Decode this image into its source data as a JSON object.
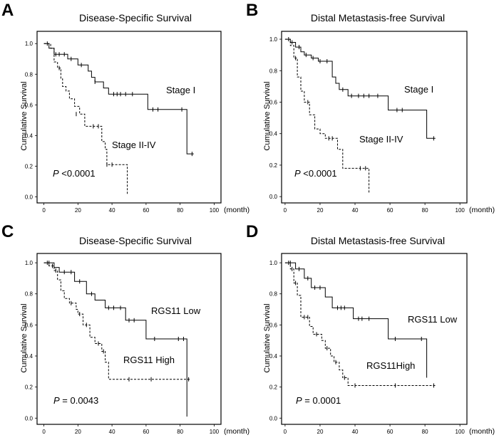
{
  "figure": {
    "panels": [
      "A",
      "B",
      "C",
      "D"
    ]
  },
  "chart_data": [
    {
      "panel": "A",
      "type": "line",
      "title": "Disease-Specific Survival",
      "xlabel": "(month)",
      "ylabel": "Cumulative Survival",
      "x_ticks": [
        "0",
        "20",
        "40",
        "60",
        "80",
        "100"
      ],
      "y_ticks": [
        "0.0",
        "0.2",
        "0.4",
        "0.6",
        "0.8",
        "1.0"
      ],
      "xlim": [
        -4,
        104
      ],
      "ylim": [
        -0.04,
        1.08
      ],
      "p_label": "P",
      "p_text": " <0.0001",
      "series": [
        {
          "name": "Stage I",
          "style": "solid",
          "steps": [
            [
              0,
              1.0
            ],
            [
              3,
              0.97
            ],
            [
              6,
              0.93
            ],
            [
              14,
              0.9
            ],
            [
              20,
              0.86
            ],
            [
              26,
              0.82
            ],
            [
              28,
              0.78
            ],
            [
              30,
              0.75
            ],
            [
              35,
              0.71
            ],
            [
              38,
              0.67
            ],
            [
              61,
              0.57
            ],
            [
              84,
              0.28
            ],
            [
              88,
              0.28
            ]
          ],
          "censors": [
            [
              2,
              1.0
            ],
            [
              7,
              0.93
            ],
            [
              9,
              0.93
            ],
            [
              12,
              0.93
            ],
            [
              16,
              0.9
            ],
            [
              22,
              0.86
            ],
            [
              30,
              0.75
            ],
            [
              41,
              0.67
            ],
            [
              43,
              0.67
            ],
            [
              45,
              0.67
            ],
            [
              48,
              0.67
            ],
            [
              52,
              0.67
            ],
            [
              64,
              0.57
            ],
            [
              67,
              0.57
            ],
            [
              81,
              0.57
            ],
            [
              87,
              0.28
            ]
          ]
        },
        {
          "name": "Stage II-IV",
          "style": "dashed",
          "steps": [
            [
              0,
              1.0
            ],
            [
              4,
              0.97
            ],
            [
              6,
              0.88
            ],
            [
              8,
              0.84
            ],
            [
              10,
              0.77
            ],
            [
              11,
              0.72
            ],
            [
              13,
              0.69
            ],
            [
              15,
              0.64
            ],
            [
              18,
              0.59
            ],
            [
              21,
              0.54
            ],
            [
              24,
              0.46
            ],
            [
              34,
              0.36
            ],
            [
              36,
              0.31
            ],
            [
              37,
              0.21
            ],
            [
              49,
              0.01
            ]
          ],
          "censors": [
            [
              9,
              0.84
            ],
            [
              19,
              0.54
            ],
            [
              29,
              0.46
            ],
            [
              32,
              0.46
            ],
            [
              37,
              0.21
            ],
            [
              40,
              0.21
            ]
          ]
        }
      ],
      "annotations": [
        "Stage I",
        "Stage II-IV"
      ]
    },
    {
      "panel": "B",
      "type": "line",
      "title": "Distal Metastasis-free Survival",
      "xlabel": "(month)",
      "ylabel": "Cumulative Survival",
      "x_ticks": [
        "0",
        "20",
        "40",
        "60",
        "80",
        "100"
      ],
      "y_ticks": [
        "0.0",
        "0.2",
        "0.4",
        "0.6",
        "0.8",
        "1.0"
      ],
      "xlim": [
        -2,
        104
      ],
      "ylim": [
        -0.04,
        1.05
      ],
      "p_label": "P",
      "p_text": " <0.0001",
      "series": [
        {
          "name": "Stage I",
          "style": "solid",
          "steps": [
            [
              0,
              1.0
            ],
            [
              3,
              0.98
            ],
            [
              6,
              0.95
            ],
            [
              9,
              0.92
            ],
            [
              11,
              0.9
            ],
            [
              15,
              0.88
            ],
            [
              19,
              0.86
            ],
            [
              27,
              0.76
            ],
            [
              29,
              0.72
            ],
            [
              31,
              0.68
            ],
            [
              36,
              0.64
            ],
            [
              59,
              0.55
            ],
            [
              81,
              0.37
            ],
            [
              86,
              0.37
            ]
          ],
          "censors": [
            [
              2,
              1.0
            ],
            [
              4,
              0.98
            ],
            [
              8,
              0.95
            ],
            [
              12,
              0.9
            ],
            [
              16,
              0.88
            ],
            [
              20,
              0.86
            ],
            [
              24,
              0.86
            ],
            [
              33,
              0.68
            ],
            [
              38,
              0.64
            ],
            [
              42,
              0.64
            ],
            [
              45,
              0.64
            ],
            [
              48,
              0.64
            ],
            [
              53,
              0.64
            ],
            [
              64,
              0.55
            ],
            [
              67,
              0.55
            ],
            [
              85,
              0.37
            ]
          ]
        },
        {
          "name": "Stage II-IV",
          "style": "dashed",
          "steps": [
            [
              0,
              1.0
            ],
            [
              3,
              0.96
            ],
            [
              5,
              0.88
            ],
            [
              7,
              0.76
            ],
            [
              9,
              0.67
            ],
            [
              11,
              0.6
            ],
            [
              14,
              0.52
            ],
            [
              17,
              0.43
            ],
            [
              20,
              0.4
            ],
            [
              23,
              0.37
            ],
            [
              30,
              0.3
            ],
            [
              33,
              0.18
            ],
            [
              48,
              0.02
            ]
          ],
          "censors": [
            [
              6,
              0.88
            ],
            [
              13,
              0.6
            ],
            [
              25,
              0.37
            ],
            [
              27,
              0.37
            ],
            [
              43,
              0.18
            ],
            [
              46,
              0.18
            ]
          ]
        }
      ],
      "annotations": [
        "Stage I",
        "Stage II-IV"
      ]
    },
    {
      "panel": "C",
      "type": "line",
      "title": "Disease-Specific Survival",
      "xlabel": "(month)",
      "ylabel": "Cumulative Survival",
      "x_ticks": [
        "0",
        "20",
        "40",
        "60",
        "80",
        "100"
      ],
      "y_ticks": [
        "0.0",
        "0.2",
        "0.4",
        "0.6",
        "0.8",
        "1.0"
      ],
      "xlim": [
        -4,
        104
      ],
      "ylim": [
        -0.04,
        1.06
      ],
      "p_label": "P",
      "p_text": " = 0.0043",
      "series": [
        {
          "name": "RGS11 Low",
          "style": "solid",
          "steps": [
            [
              0,
              1.0
            ],
            [
              6,
              0.97
            ],
            [
              9,
              0.94
            ],
            [
              18,
              0.88
            ],
            [
              25,
              0.8
            ],
            [
              30,
              0.76
            ],
            [
              36,
              0.71
            ],
            [
              48,
              0.63
            ],
            [
              60,
              0.51
            ],
            [
              84,
              0.01
            ]
          ],
          "censors": [
            [
              3,
              1.0
            ],
            [
              12,
              0.94
            ],
            [
              16,
              0.94
            ],
            [
              21,
              0.88
            ],
            [
              28,
              0.8
            ],
            [
              38,
              0.71
            ],
            [
              41,
              0.71
            ],
            [
              45,
              0.71
            ],
            [
              50,
              0.63
            ],
            [
              53,
              0.63
            ],
            [
              65,
              0.51
            ],
            [
              79,
              0.51
            ],
            [
              82,
              0.51
            ]
          ]
        },
        {
          "name": "RGS11 High",
          "style": "dashed",
          "steps": [
            [
              0,
              1.0
            ],
            [
              3,
              0.98
            ],
            [
              6,
              0.95
            ],
            [
              8,
              0.89
            ],
            [
              10,
              0.82
            ],
            [
              12,
              0.77
            ],
            [
              15,
              0.74
            ],
            [
              19,
              0.7
            ],
            [
              20,
              0.67
            ],
            [
              23,
              0.6
            ],
            [
              27,
              0.52
            ],
            [
              30,
              0.48
            ],
            [
              34,
              0.43
            ],
            [
              36,
              0.36
            ],
            [
              38,
              0.25
            ],
            [
              86,
              0.25
            ]
          ],
          "censors": [
            [
              2,
              1.0
            ],
            [
              5,
              0.98
            ],
            [
              7,
              0.95
            ],
            [
              16,
              0.74
            ],
            [
              21,
              0.67
            ],
            [
              25,
              0.6
            ],
            [
              32,
              0.48
            ],
            [
              35,
              0.43
            ],
            [
              50,
              0.25
            ],
            [
              63,
              0.25
            ],
            [
              85,
              0.25
            ]
          ]
        }
      ],
      "annotations": [
        "RGS11 Low",
        "RGS11 High"
      ]
    },
    {
      "panel": "D",
      "type": "line",
      "title": "Distal Metastasis-free Survival",
      "xlabel": "(month)",
      "ylabel": "Cumulative Survival",
      "x_ticks": [
        "0",
        "20",
        "40",
        "60",
        "80",
        "100"
      ],
      "y_ticks": [
        "0.0",
        "0.2",
        "0.4",
        "0.6",
        "0.8",
        "1.0"
      ],
      "xlim": [
        -2,
        104
      ],
      "ylim": [
        -0.04,
        1.06
      ],
      "p_label": "P",
      "p_text": " = 0.0001",
      "series": [
        {
          "name": "RGS11 Low",
          "style": "solid",
          "steps": [
            [
              0,
              1.0
            ],
            [
              6,
              0.96
            ],
            [
              11,
              0.9
            ],
            [
              15,
              0.84
            ],
            [
              23,
              0.78
            ],
            [
              27,
              0.71
            ],
            [
              39,
              0.64
            ],
            [
              59,
              0.51
            ],
            [
              81,
              0.26
            ]
          ],
          "censors": [
            [
              3,
              1.0
            ],
            [
              8,
              0.96
            ],
            [
              13,
              0.9
            ],
            [
              17,
              0.84
            ],
            [
              20,
              0.84
            ],
            [
              30,
              0.71
            ],
            [
              32,
              0.71
            ],
            [
              34,
              0.71
            ],
            [
              42,
              0.64
            ],
            [
              44,
              0.64
            ],
            [
              48,
              0.64
            ],
            [
              63,
              0.51
            ],
            [
              78,
              0.51
            ]
          ]
        },
        {
          "name": "RGS11High",
          "style": "dashed",
          "steps": [
            [
              0,
              1.0
            ],
            [
              3,
              0.96
            ],
            [
              5,
              0.87
            ],
            [
              7,
              0.79
            ],
            [
              9,
              0.65
            ],
            [
              14,
              0.59
            ],
            [
              16,
              0.54
            ],
            [
              21,
              0.5
            ],
            [
              23,
              0.45
            ],
            [
              26,
              0.4
            ],
            [
              28,
              0.36
            ],
            [
              31,
              0.31
            ],
            [
              33,
              0.26
            ],
            [
              36,
              0.21
            ],
            [
              86,
              0.21
            ]
          ],
          "censors": [
            [
              2,
              1.0
            ],
            [
              4,
              0.96
            ],
            [
              6,
              0.87
            ],
            [
              11,
              0.65
            ],
            [
              13,
              0.65
            ],
            [
              18,
              0.54
            ],
            [
              24,
              0.45
            ],
            [
              29,
              0.36
            ],
            [
              34,
              0.26
            ],
            [
              40,
              0.21
            ],
            [
              63,
              0.21
            ],
            [
              85,
              0.21
            ]
          ]
        }
      ],
      "annotations": [
        "RGS11 Low",
        "RGS11High"
      ]
    }
  ]
}
